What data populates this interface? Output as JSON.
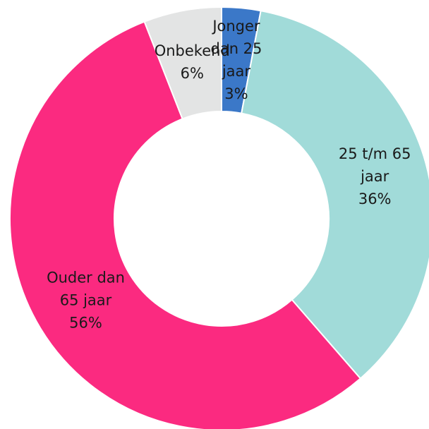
{
  "chart_data": {
    "type": "donut",
    "categories": [
      "Jonger dan 25 jaar",
      "25 t/m 65 jaar",
      "Ouder dan 65 jaar",
      "Onbekend"
    ],
    "values": [
      3,
      36,
      56,
      6
    ],
    "value_labels": [
      "3%",
      "36%",
      "56%",
      "6%"
    ],
    "colors": [
      "#3b78c8",
      "#a1dbd9",
      "#fb2a80",
      "#e3e4e4"
    ]
  }
}
